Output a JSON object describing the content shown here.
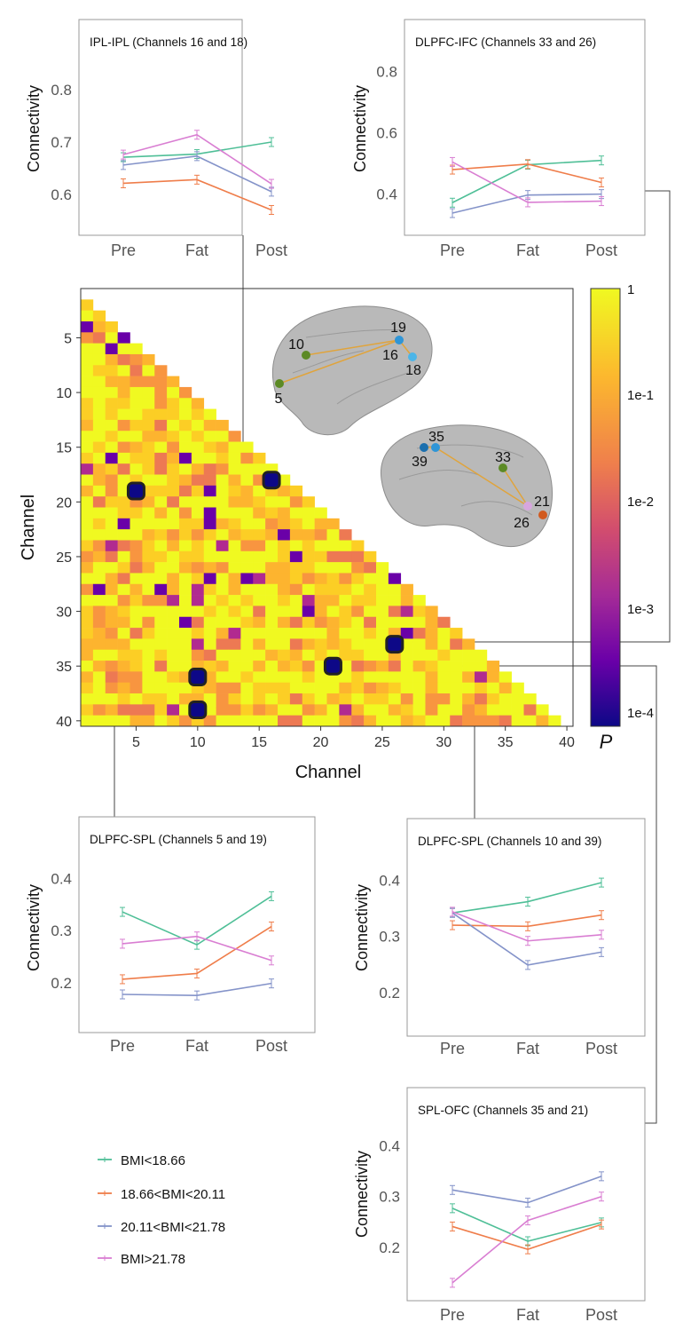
{
  "legend": [
    {
      "label": "BMI<18.66",
      "color": "#4fbf97"
    },
    {
      "label": "18.66<BMI<20.11",
      "color": "#ef7d4a"
    },
    {
      "label": "20.11<BMI<21.78",
      "color": "#8493c9"
    },
    {
      "label": "BMI>21.78",
      "color": "#d97ed2"
    }
  ],
  "chart_data": [
    {
      "type": "line",
      "title": "IPL-IPL (Channels 16 and 18)",
      "ylabel": "Connectivity",
      "categories": [
        "Pre",
        "Fat",
        "Post"
      ],
      "ylim": [
        0.53,
        0.87
      ],
      "yticks": [
        0.6,
        0.7,
        0.8
      ],
      "series": [
        {
          "name": "BMI<18.66",
          "values": [
            0.671,
            0.677,
            0.7
          ]
        },
        {
          "name": "18.66<BMI<20.11",
          "values": [
            0.621,
            0.628,
            0.57
          ]
        },
        {
          "name": "20.11<BMI<21.78",
          "values": [
            0.656,
            0.673,
            0.605
          ]
        },
        {
          "name": "BMI>21.78",
          "values": [
            0.676,
            0.714,
            0.62
          ]
        }
      ]
    },
    {
      "type": "line",
      "title": "DLPFC-IFC (Channels 33 and 26)",
      "ylabel": "Connectivity",
      "categories": [
        "Pre",
        "Fat",
        "Post"
      ],
      "ylim": [
        0.28,
        0.86
      ],
      "yticks": [
        0.4,
        0.6,
        0.8
      ],
      "series": [
        {
          "name": "BMI<18.66",
          "values": [
            0.372,
            0.496,
            0.51
          ]
        },
        {
          "name": "18.66<BMI<20.11",
          "values": [
            0.48,
            0.498,
            0.438
          ]
        },
        {
          "name": "20.11<BMI<21.78",
          "values": [
            0.338,
            0.397,
            0.4
          ]
        },
        {
          "name": "BMI>21.78",
          "values": [
            0.505,
            0.373,
            0.377
          ]
        }
      ]
    },
    {
      "type": "heatmap",
      "xlabel": "Channel",
      "ylabel": "Channel",
      "xticks": [
        5,
        10,
        15,
        20,
        25,
        30,
        35,
        40
      ],
      "yticks": [
        5,
        10,
        15,
        20,
        25,
        30,
        35,
        40
      ],
      "n": 40,
      "colorbar": {
        "label": "P",
        "ticks": [
          "1",
          "1e-1",
          "1e-2",
          "1e-3",
          "1e-4"
        ],
        "scale": "log"
      },
      "significant_pairs": [
        [
          5,
          19
        ],
        [
          16,
          18
        ],
        [
          26,
          33
        ],
        [
          21,
          35
        ],
        [
          10,
          36
        ],
        [
          10,
          39
        ]
      ],
      "brain_left": {
        "nodes": [
          "10",
          "5",
          "19",
          "16",
          "18"
        ]
      },
      "brain_right": {
        "nodes": [
          "35",
          "39",
          "33",
          "21",
          "26"
        ]
      }
    },
    {
      "type": "line",
      "title": "DLPFC-SPL (Channels 5 and 19)",
      "ylabel": "Connectivity",
      "categories": [
        "Pre",
        "Fat",
        "Post"
      ],
      "ylim": [
        0.11,
        0.45
      ],
      "yticks": [
        0.2,
        0.3,
        0.4
      ],
      "series": [
        {
          "name": "BMI<18.66",
          "values": [
            0.336,
            0.273,
            0.366
          ]
        },
        {
          "name": "18.66<BMI<20.11",
          "values": [
            0.207,
            0.218,
            0.308
          ]
        },
        {
          "name": "20.11<BMI<21.78",
          "values": [
            0.178,
            0.176,
            0.199
          ]
        },
        {
          "name": "BMI>21.78",
          "values": [
            0.275,
            0.289,
            0.243
          ]
        }
      ]
    },
    {
      "type": "line",
      "title": "DLPFC-SPL (Channels 10 and 39)",
      "ylabel": "Connectivity",
      "categories": [
        "Pre",
        "Fat",
        "Post"
      ],
      "ylim": [
        0.13,
        0.45
      ],
      "yticks": [
        0.2,
        0.3,
        0.4
      ],
      "series": [
        {
          "name": "BMI<18.66",
          "values": [
            0.342,
            0.362,
            0.396
          ]
        },
        {
          "name": "18.66<BMI<20.11",
          "values": [
            0.32,
            0.318,
            0.338
          ]
        },
        {
          "name": "20.11<BMI<21.78",
          "values": [
            0.342,
            0.249,
            0.272
          ]
        },
        {
          "name": "BMI>21.78",
          "values": [
            0.344,
            0.292,
            0.303
          ]
        }
      ]
    },
    {
      "type": "line",
      "title": "SPL-OFC (Channels 35 and 21)",
      "ylabel": "Connectivity",
      "categories": [
        "Pre",
        "Fat",
        "Post"
      ],
      "ylim": [
        0.1,
        0.45
      ],
      "yticks": [
        0.2,
        0.3,
        0.4
      ],
      "series": [
        {
          "name": "BMI<18.66",
          "values": [
            0.277,
            0.212,
            0.249
          ]
        },
        {
          "name": "18.66<BMI<20.11",
          "values": [
            0.241,
            0.196,
            0.245
          ]
        },
        {
          "name": "20.11<BMI<21.78",
          "values": [
            0.313,
            0.288,
            0.34
          ]
        },
        {
          "name": "BMI>21.78",
          "values": [
            0.13,
            0.253,
            0.3
          ]
        }
      ]
    }
  ]
}
